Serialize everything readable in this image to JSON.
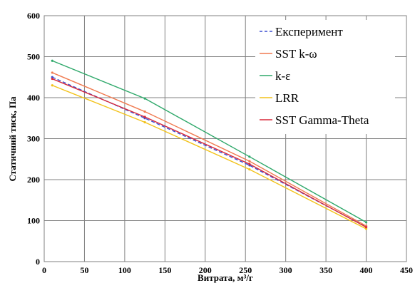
{
  "chart_data": {
    "type": "line",
    "xlabel": "Витрата, м³/г",
    "ylabel": "Статичний тиск, Па",
    "xlim": [
      0,
      450
    ],
    "ylim": [
      0,
      600
    ],
    "xticks": [
      0,
      50,
      100,
      150,
      200,
      250,
      300,
      350,
      400,
      450
    ],
    "yticks": [
      0,
      100,
      200,
      300,
      400,
      500,
      600
    ],
    "grid": true,
    "legend_position": "top-right",
    "series": [
      {
        "name": "Експеримент",
        "color": "#3b4fd0",
        "style": "dashed",
        "x": [
          10,
          125,
          255,
          400
        ],
        "y": [
          450,
          350,
          235,
          85
        ]
      },
      {
        "name": "SST k-ω",
        "color": "#f07a50",
        "style": "solid",
        "x": [
          10,
          125,
          255,
          400
        ],
        "y": [
          461,
          366,
          245,
          87
        ]
      },
      {
        "name": "k-ε",
        "color": "#2ea86a",
        "style": "solid",
        "x": [
          10,
          125,
          255,
          400
        ],
        "y": [
          490,
          398,
          256,
          96
        ]
      },
      {
        "name": "LRR",
        "color": "#f2c21a",
        "style": "solid",
        "x": [
          10,
          125,
          255,
          400
        ],
        "y": [
          430,
          340,
          225,
          80
        ]
      },
      {
        "name": "SST Gamma-Theta",
        "color": "#d8283a",
        "style": "solid",
        "x": [
          10,
          125,
          255,
          400
        ],
        "y": [
          446,
          353,
          238,
          84
        ]
      }
    ]
  }
}
